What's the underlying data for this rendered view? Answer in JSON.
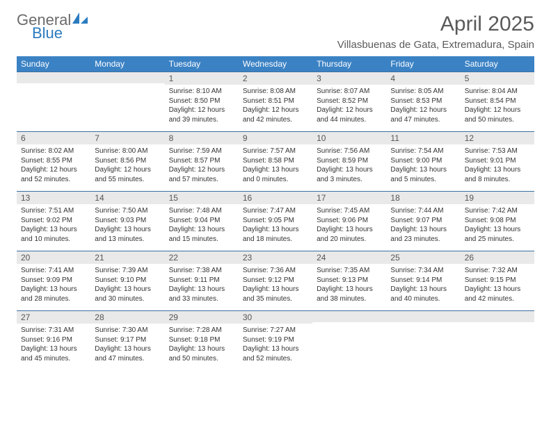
{
  "logo": {
    "text1": "General",
    "text2": "Blue"
  },
  "title": "April 2025",
  "location": "Villasbuenas de Gata, Extremadura, Spain",
  "colors": {
    "header_bg": "#3b82c4",
    "header_text": "#ffffff",
    "daynum_bg": "#e9e9e9",
    "border": "#3b6fa0",
    "logo_gray": "#6b6b6b",
    "logo_blue": "#2b7bbf"
  },
  "weekdays": [
    "Sunday",
    "Monday",
    "Tuesday",
    "Wednesday",
    "Thursday",
    "Friday",
    "Saturday"
  ],
  "weeks": [
    [
      {
        "n": "",
        "sr": "",
        "ss": "",
        "dl": ""
      },
      {
        "n": "",
        "sr": "",
        "ss": "",
        "dl": ""
      },
      {
        "n": "1",
        "sr": "Sunrise: 8:10 AM",
        "ss": "Sunset: 8:50 PM",
        "dl": "Daylight: 12 hours and 39 minutes."
      },
      {
        "n": "2",
        "sr": "Sunrise: 8:08 AM",
        "ss": "Sunset: 8:51 PM",
        "dl": "Daylight: 12 hours and 42 minutes."
      },
      {
        "n": "3",
        "sr": "Sunrise: 8:07 AM",
        "ss": "Sunset: 8:52 PM",
        "dl": "Daylight: 12 hours and 44 minutes."
      },
      {
        "n": "4",
        "sr": "Sunrise: 8:05 AM",
        "ss": "Sunset: 8:53 PM",
        "dl": "Daylight: 12 hours and 47 minutes."
      },
      {
        "n": "5",
        "sr": "Sunrise: 8:04 AM",
        "ss": "Sunset: 8:54 PM",
        "dl": "Daylight: 12 hours and 50 minutes."
      }
    ],
    [
      {
        "n": "6",
        "sr": "Sunrise: 8:02 AM",
        "ss": "Sunset: 8:55 PM",
        "dl": "Daylight: 12 hours and 52 minutes."
      },
      {
        "n": "7",
        "sr": "Sunrise: 8:00 AM",
        "ss": "Sunset: 8:56 PM",
        "dl": "Daylight: 12 hours and 55 minutes."
      },
      {
        "n": "8",
        "sr": "Sunrise: 7:59 AM",
        "ss": "Sunset: 8:57 PM",
        "dl": "Daylight: 12 hours and 57 minutes."
      },
      {
        "n": "9",
        "sr": "Sunrise: 7:57 AM",
        "ss": "Sunset: 8:58 PM",
        "dl": "Daylight: 13 hours and 0 minutes."
      },
      {
        "n": "10",
        "sr": "Sunrise: 7:56 AM",
        "ss": "Sunset: 8:59 PM",
        "dl": "Daylight: 13 hours and 3 minutes."
      },
      {
        "n": "11",
        "sr": "Sunrise: 7:54 AM",
        "ss": "Sunset: 9:00 PM",
        "dl": "Daylight: 13 hours and 5 minutes."
      },
      {
        "n": "12",
        "sr": "Sunrise: 7:53 AM",
        "ss": "Sunset: 9:01 PM",
        "dl": "Daylight: 13 hours and 8 minutes."
      }
    ],
    [
      {
        "n": "13",
        "sr": "Sunrise: 7:51 AM",
        "ss": "Sunset: 9:02 PM",
        "dl": "Daylight: 13 hours and 10 minutes."
      },
      {
        "n": "14",
        "sr": "Sunrise: 7:50 AM",
        "ss": "Sunset: 9:03 PM",
        "dl": "Daylight: 13 hours and 13 minutes."
      },
      {
        "n": "15",
        "sr": "Sunrise: 7:48 AM",
        "ss": "Sunset: 9:04 PM",
        "dl": "Daylight: 13 hours and 15 minutes."
      },
      {
        "n": "16",
        "sr": "Sunrise: 7:47 AM",
        "ss": "Sunset: 9:05 PM",
        "dl": "Daylight: 13 hours and 18 minutes."
      },
      {
        "n": "17",
        "sr": "Sunrise: 7:45 AM",
        "ss": "Sunset: 9:06 PM",
        "dl": "Daylight: 13 hours and 20 minutes."
      },
      {
        "n": "18",
        "sr": "Sunrise: 7:44 AM",
        "ss": "Sunset: 9:07 PM",
        "dl": "Daylight: 13 hours and 23 minutes."
      },
      {
        "n": "19",
        "sr": "Sunrise: 7:42 AM",
        "ss": "Sunset: 9:08 PM",
        "dl": "Daylight: 13 hours and 25 minutes."
      }
    ],
    [
      {
        "n": "20",
        "sr": "Sunrise: 7:41 AM",
        "ss": "Sunset: 9:09 PM",
        "dl": "Daylight: 13 hours and 28 minutes."
      },
      {
        "n": "21",
        "sr": "Sunrise: 7:39 AM",
        "ss": "Sunset: 9:10 PM",
        "dl": "Daylight: 13 hours and 30 minutes."
      },
      {
        "n": "22",
        "sr": "Sunrise: 7:38 AM",
        "ss": "Sunset: 9:11 PM",
        "dl": "Daylight: 13 hours and 33 minutes."
      },
      {
        "n": "23",
        "sr": "Sunrise: 7:36 AM",
        "ss": "Sunset: 9:12 PM",
        "dl": "Daylight: 13 hours and 35 minutes."
      },
      {
        "n": "24",
        "sr": "Sunrise: 7:35 AM",
        "ss": "Sunset: 9:13 PM",
        "dl": "Daylight: 13 hours and 38 minutes."
      },
      {
        "n": "25",
        "sr": "Sunrise: 7:34 AM",
        "ss": "Sunset: 9:14 PM",
        "dl": "Daylight: 13 hours and 40 minutes."
      },
      {
        "n": "26",
        "sr": "Sunrise: 7:32 AM",
        "ss": "Sunset: 9:15 PM",
        "dl": "Daylight: 13 hours and 42 minutes."
      }
    ],
    [
      {
        "n": "27",
        "sr": "Sunrise: 7:31 AM",
        "ss": "Sunset: 9:16 PM",
        "dl": "Daylight: 13 hours and 45 minutes."
      },
      {
        "n": "28",
        "sr": "Sunrise: 7:30 AM",
        "ss": "Sunset: 9:17 PM",
        "dl": "Daylight: 13 hours and 47 minutes."
      },
      {
        "n": "29",
        "sr": "Sunrise: 7:28 AM",
        "ss": "Sunset: 9:18 PM",
        "dl": "Daylight: 13 hours and 50 minutes."
      },
      {
        "n": "30",
        "sr": "Sunrise: 7:27 AM",
        "ss": "Sunset: 9:19 PM",
        "dl": "Daylight: 13 hours and 52 minutes."
      },
      {
        "n": "",
        "sr": "",
        "ss": "",
        "dl": ""
      },
      {
        "n": "",
        "sr": "",
        "ss": "",
        "dl": ""
      },
      {
        "n": "",
        "sr": "",
        "ss": "",
        "dl": ""
      }
    ]
  ]
}
